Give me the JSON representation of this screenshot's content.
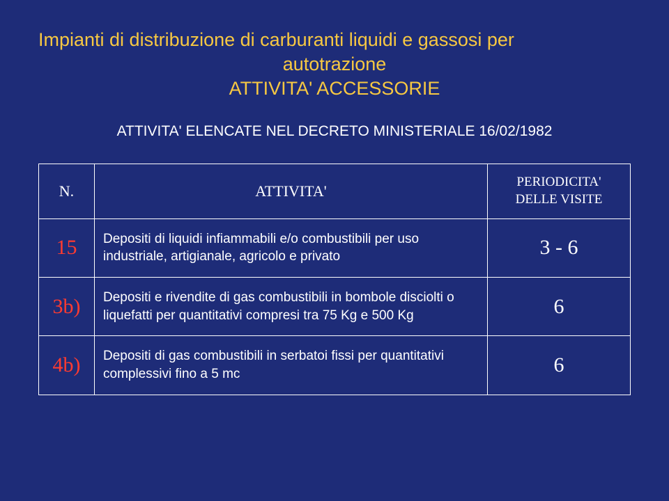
{
  "title_line1": "Impianti di distribuzione di carburanti liquidi e gassosi per",
  "title_line2": "autotrazione",
  "title_line3": "ATTIVITA' ACCESSORIE",
  "subtitle": "ATTIVITA' ELENCATE NEL DECRETO MINISTERIALE 16/02/1982",
  "headers": {
    "n": "N.",
    "attivita": "ATTIVITA'",
    "periodicita_line1": "PERIODICITA'",
    "periodicita_line2": "DELLE VISITE"
  },
  "rows": [
    {
      "n": "15",
      "attivita": "Depositi di liquidi infiammabili e/o combustibili per uso industriale, artigianale, agricolo e privato",
      "periodicita": "3 - 6"
    },
    {
      "n": "3b)",
      "attivita": "Depositi e rivendite di gas combustibili in bombole disciolti o liquefatti per quantitativi compresi tra 75 Kg e 500 Kg",
      "periodicita": "6"
    },
    {
      "n": "4b)",
      "attivita": "Depositi di gas combustibili in serbatoi fissi per quantitativi complessivi fino a 5 mc",
      "periodicita": "6"
    }
  ],
  "style": {
    "background_color": "#1e2c78",
    "title_color": "#f7c842",
    "text_color": "#ffffff",
    "number_color": "#ff3b30",
    "border_color": "#ffffff",
    "title_fontsize": 27,
    "subtitle_fontsize": 21,
    "header_fontsize": 22,
    "header_small_fontsize": 19,
    "cell_n_fontsize": 30,
    "cell_activity_fontsize": 19,
    "cell_period_fontsize": 30,
    "serif_font": "Times New Roman",
    "sans_font": "Arial",
    "col_widths": {
      "n": 80,
      "periodicita": 205
    }
  }
}
